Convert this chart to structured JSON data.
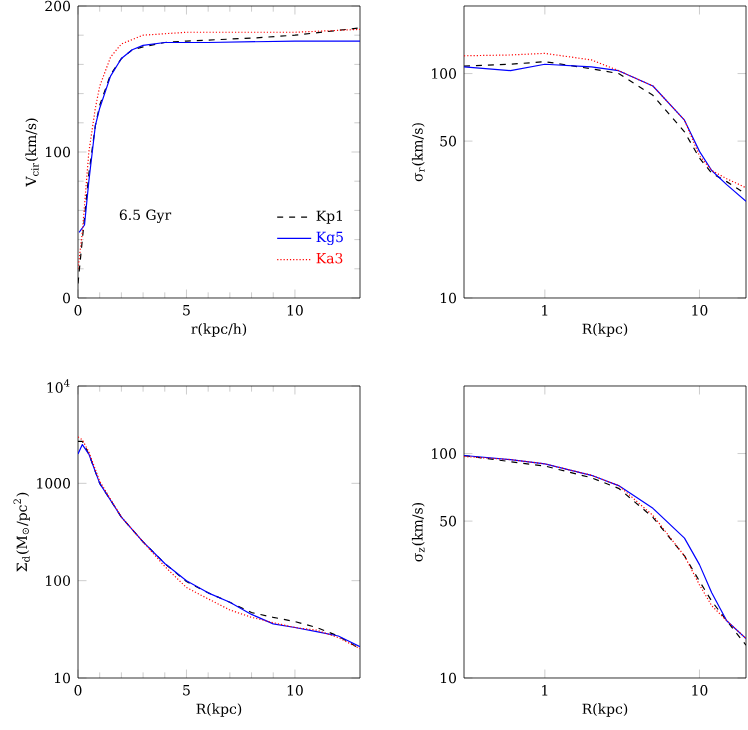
{
  "chart_data": [
    {
      "type": "line",
      "xlabel": "r(kpc/h)",
      "ylabel": "V$_{cir}$(km/s)",
      "xlim": [
        0,
        13
      ],
      "ylim": [
        0,
        200
      ],
      "xticks": [
        0,
        5,
        10
      ],
      "yticks": [
        0,
        100,
        200
      ],
      "legend": "bottom right",
      "annotations": [
        "6.5 Gyr"
      ],
      "series": [
        {
          "name": "Kp1",
          "color": "#000000",
          "line_style": "dashed",
          "x": [
            0,
            0.2,
            0.5,
            0.8,
            1,
            1.5,
            2,
            2.5,
            3,
            4,
            5,
            8,
            10,
            13
          ],
          "values": [
            10,
            40,
            85,
            118,
            132,
            153,
            164,
            170,
            172,
            175,
            176,
            178,
            180,
            185
          ]
        },
        {
          "name": "Kg5",
          "color": "#0000ff",
          "line_style": "solid",
          "x": [
            0.05,
            0.3,
            0.5,
            0.8,
            1,
            1.5,
            2,
            2.5,
            3,
            4,
            6,
            10,
            13
          ],
          "values": [
            45,
            50,
            80,
            118,
            130,
            152,
            164,
            170,
            173,
            175,
            175,
            176,
            176
          ]
        },
        {
          "name": "Ka3",
          "color": "#ff0000",
          "line_style": "dotted",
          "x": [
            0,
            0.2,
            0.5,
            0.8,
            1,
            1.5,
            2,
            3,
            5,
            8,
            10,
            13
          ],
          "values": [
            20,
            45,
            100,
            130,
            145,
            165,
            174,
            180,
            182,
            182,
            182,
            184
          ]
        }
      ]
    },
    {
      "type": "line",
      "xlabel": "R(kpc)",
      "ylabel": "σ$_{r}$(km/s)",
      "log": "xy",
      "xlim": [
        0.3,
        20
      ],
      "ylim": [
        10,
        200
      ],
      "xticks": [
        1,
        10
      ],
      "yticks": [
        10,
        50,
        100
      ],
      "series": [
        {
          "color": "#000000",
          "line_style": "dashed",
          "x": [
            0.3,
            0.6,
            1,
            2,
            3,
            5,
            8,
            10,
            12,
            15,
            20
          ],
          "values": [
            108,
            110,
            113,
            105,
            100,
            80,
            55,
            42,
            36,
            33,
            29
          ]
        },
        {
          "color": "#0000ff",
          "line_style": "solid",
          "x": [
            0.3,
            0.6,
            1,
            2,
            3,
            5,
            8,
            10,
            12,
            15,
            20
          ],
          "values": [
            107,
            103,
            110,
            107,
            103,
            88,
            62,
            45,
            37,
            32,
            27
          ]
        },
        {
          "color": "#ff0000",
          "line_style": "dotted",
          "x": [
            0.3,
            0.6,
            1,
            2,
            3,
            5,
            8,
            10,
            12,
            15,
            20
          ],
          "values": [
            120,
            121,
            123,
            115,
            103,
            88,
            62,
            43,
            37,
            34,
            31
          ]
        }
      ]
    },
    {
      "type": "line",
      "xlabel": "R(kpc)",
      "ylabel": "Σ$_{d}$(M$_{⊙}$/pc$^{2}$)",
      "log": "y",
      "xlim": [
        0,
        13
      ],
      "ylim": [
        10,
        10000
      ],
      "xticks": [
        0,
        5,
        10
      ],
      "yticks": [
        10,
        100,
        1000,
        {
          "value": 10000,
          "label": "10$^{4}$"
        }
      ],
      "series": [
        {
          "color": "#000000",
          "line_style": "dashed",
          "x": [
            0,
            0.2,
            0.5,
            1,
            2,
            3,
            4,
            5,
            6,
            7,
            8,
            9,
            10,
            11,
            12,
            13
          ],
          "values": [
            2700,
            2700,
            2000,
            1000,
            450,
            250,
            150,
            98,
            75,
            60,
            47,
            42,
            38,
            33,
            27,
            20
          ]
        },
        {
          "color": "#0000ff",
          "line_style": "solid",
          "x": [
            0,
            0.2,
            0.5,
            1,
            2,
            3,
            4,
            5,
            6,
            7,
            8,
            9,
            10,
            11,
            12,
            13
          ],
          "values": [
            2000,
            2500,
            2000,
            1000,
            450,
            250,
            150,
            100,
            75,
            60,
            45,
            36,
            33,
            30,
            27,
            21
          ]
        },
        {
          "color": "#ff0000",
          "line_style": "dotted",
          "x": [
            0,
            0.2,
            0.5,
            1,
            2,
            3,
            4,
            5,
            6,
            7,
            8,
            9,
            10,
            11,
            12,
            13
          ],
          "values": [
            3000,
            2800,
            2100,
            1050,
            450,
            250,
            140,
            85,
            65,
            50,
            42,
            37,
            33,
            31,
            26,
            20
          ]
        }
      ]
    },
    {
      "type": "line",
      "xlabel": "R(kpc)",
      "ylabel": "σ$_{z}$(km/s)",
      "log": "xy",
      "xlim": [
        0.3,
        20
      ],
      "ylim": [
        10,
        200
      ],
      "xticks": [
        1,
        10
      ],
      "yticks": [
        10,
        50,
        100
      ],
      "series": [
        {
          "color": "#000000",
          "line_style": "dashed",
          "x": [
            0.3,
            0.6,
            1,
            2,
            3,
            5,
            8,
            10,
            12,
            15,
            20
          ],
          "values": [
            98,
            92,
            88,
            78,
            70,
            52,
            35,
            27,
            22,
            18,
            14
          ]
        },
        {
          "color": "#0000ff",
          "line_style": "solid",
          "x": [
            0.3,
            0.6,
            1,
            2,
            3,
            5,
            8,
            10,
            12,
            15,
            20
          ],
          "values": [
            98,
            94,
            90,
            80,
            72,
            57,
            42,
            32,
            24,
            18,
            15
          ]
        },
        {
          "color": "#ff0000",
          "line_style": "dotted",
          "x": [
            0.3,
            0.6,
            1,
            2,
            3,
            5,
            8,
            10,
            12,
            15,
            20
          ],
          "values": [
            97,
            94,
            90,
            80,
            72,
            53,
            35,
            26,
            21,
            18,
            15
          ]
        }
      ]
    }
  ]
}
